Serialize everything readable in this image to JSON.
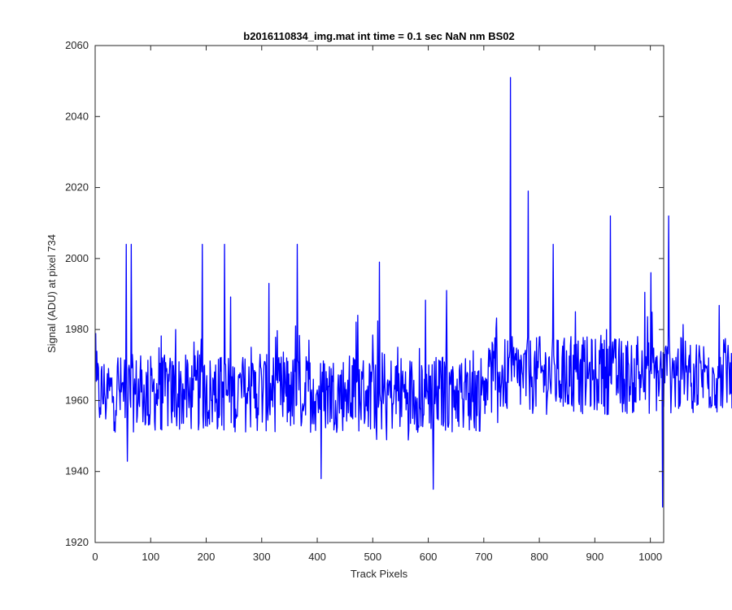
{
  "chart_data": {
    "type": "line",
    "title": "b2016110834_img.mat int time = 0.1 sec  NaN nm BS02",
    "xlabel": "Track Pixels",
    "ylabel": "Signal (ADU) at pixel 734",
    "xlim": [
      0,
      1024
    ],
    "ylim": [
      1920,
      2060
    ],
    "xticks": [
      0,
      100,
      200,
      300,
      400,
      500,
      600,
      700,
      800,
      900,
      1000
    ],
    "yticks": [
      1920,
      1940,
      1960,
      1980,
      2000,
      2020,
      2040,
      2060
    ],
    "grid": false,
    "legend": "none",
    "line_color": "#0000ff",
    "series": [
      {
        "x_start": 1,
        "x_step": 8,
        "values": [
          1979,
          1958,
          1962,
          1966,
          1961,
          1972,
          1965,
          1959,
          2004,
          1962,
          1968,
          1960,
          1956,
          1965,
          1963,
          1972,
          1969,
          1957,
          1980,
          1965,
          1961,
          1958,
          1963,
          1974,
          1962,
          1967,
          1960,
          1970,
          1972,
          2004,
          1966,
          1965,
          1960,
          1970,
          1962,
          1975,
          1968,
          1973,
          1971,
          1993,
          1972,
          1965,
          1960,
          1972,
          1968,
          1981,
          1970,
          1959,
          1977,
          1966,
          1961,
          1968,
          1963,
          1969,
          1960,
          1967,
          1962,
          1965,
          1972,
          1984,
          1966,
          1963,
          1968,
          1970,
          1962,
          1973,
          1964,
          1959,
          1975,
          1966,
          1963,
          1968,
          1961,
          1958,
          1966,
          1970,
          1968,
          1964,
          1972,
          1991,
          1968,
          1964,
          1970,
          1965,
          1962,
          1974,
          1968,
          1964,
          1966,
          1970,
          1963,
          1968,
          1967,
          1972,
          1970,
          1965,
          1968,
          1973,
          1968,
          1966,
          1978,
          1970,
          1972,
          2004,
          1969,
          1972,
          1974,
          1978,
          1985,
          1970,
          1971,
          1968,
          1967,
          1966,
          1976,
          1980,
          1965,
          1972,
          1963,
          1966,
          1970,
          1965,
          1978,
          1974,
          1969,
          1996,
          1971,
          1968,
          1973,
          2012,
          1970,
          1972,
          1966,
          1968,
          1964,
          1969,
          1973,
          1971,
          1972,
          1969,
          1964,
          1970,
          1966,
          1962,
          1968,
          1930
        ]
      }
    ],
    "spikes": [
      {
        "x": 56,
        "y": 2004
      },
      {
        "x": 193,
        "y": 2004
      },
      {
        "x": 364,
        "y": 2004
      },
      {
        "x": 407,
        "y": 1938
      },
      {
        "x": 512,
        "y": 1999
      },
      {
        "x": 609,
        "y": 1935
      },
      {
        "x": 748,
        "y": 2051
      },
      {
        "x": 780,
        "y": 2019
      },
      {
        "x": 928,
        "y": 2012
      },
      {
        "x": 1022,
        "y": 1930
      }
    ]
  }
}
